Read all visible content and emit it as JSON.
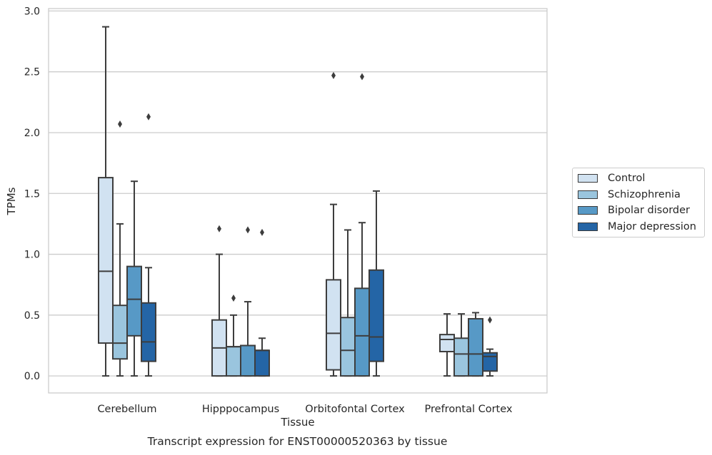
{
  "caption": "Transcript expression for ENST00000520363 by tissue",
  "chart_data": {
    "type": "box",
    "xlabel": "Tissue",
    "ylabel": "TPMs",
    "ylim": [
      -0.14,
      3.02
    ],
    "yticks": [
      "0.0",
      "0.5",
      "1.0",
      "1.5",
      "2.0",
      "2.5",
      "3.0"
    ],
    "grid": "horizontal",
    "legend_position": "right",
    "categories": [
      "Cerebellum",
      "Hipppocampus",
      "Orbitofontal Cortex",
      "Prefrontal Cortex"
    ],
    "series": [
      {
        "name": "Control",
        "color": "#d1e2f1",
        "boxes": [
          {
            "whislo": 0.0,
            "q1": 0.27,
            "med": 0.86,
            "q3": 1.63,
            "whishi": 2.87,
            "fliers": []
          },
          {
            "whislo": 0.0,
            "q1": 0.0,
            "med": 0.23,
            "q3": 0.46,
            "whishi": 1.0,
            "fliers": [
              1.21
            ]
          },
          {
            "whislo": 0.0,
            "q1": 0.05,
            "med": 0.35,
            "q3": 0.79,
            "whishi": 1.41,
            "fliers": [
              2.47
            ]
          },
          {
            "whislo": 0.0,
            "q1": 0.2,
            "med": 0.3,
            "q3": 0.34,
            "whishi": 0.51,
            "fliers": []
          }
        ]
      },
      {
        "name": "Schizophrenia",
        "color": "#9ac5de",
        "boxes": [
          {
            "whislo": 0.0,
            "q1": 0.14,
            "med": 0.27,
            "q3": 0.58,
            "whishi": 1.25,
            "fliers": [
              2.07
            ]
          },
          {
            "whislo": 0.0,
            "q1": 0.0,
            "med": 0.24,
            "q3": 0.24,
            "whishi": 0.5,
            "fliers": [
              0.64
            ]
          },
          {
            "whislo": 0.0,
            "q1": 0.0,
            "med": 0.21,
            "q3": 0.48,
            "whishi": 1.2,
            "fliers": []
          },
          {
            "whislo": 0.0,
            "q1": 0.0,
            "med": 0.18,
            "q3": 0.31,
            "whishi": 0.51,
            "fliers": []
          }
        ]
      },
      {
        "name": "Bipolar disorder",
        "color": "#5799c6",
        "boxes": [
          {
            "whislo": 0.0,
            "q1": 0.33,
            "med": 0.63,
            "q3": 0.9,
            "whishi": 1.6,
            "fliers": []
          },
          {
            "whislo": 0.0,
            "q1": 0.0,
            "med": 0.25,
            "q3": 0.25,
            "whishi": 0.61,
            "fliers": [
              1.2
            ]
          },
          {
            "whislo": 0.0,
            "q1": 0.0,
            "med": 0.33,
            "q3": 0.72,
            "whishi": 1.26,
            "fliers": [
              2.46
            ]
          },
          {
            "whislo": 0.0,
            "q1": 0.0,
            "med": 0.18,
            "q3": 0.47,
            "whishi": 0.52,
            "fliers": []
          }
        ]
      },
      {
        "name": "Major depression",
        "color": "#2465a6",
        "boxes": [
          {
            "whislo": 0.0,
            "q1": 0.12,
            "med": 0.28,
            "q3": 0.6,
            "whishi": 0.89,
            "fliers": [
              2.13
            ]
          },
          {
            "whislo": 0.0,
            "q1": 0.0,
            "med": 0.21,
            "q3": 0.21,
            "whishi": 0.31,
            "fliers": [
              1.18
            ]
          },
          {
            "whislo": 0.0,
            "q1": 0.12,
            "med": 0.32,
            "q3": 0.87,
            "whishi": 1.52,
            "fliers": []
          },
          {
            "whislo": 0.0,
            "q1": 0.04,
            "med": 0.16,
            "q3": 0.19,
            "whishi": 0.22,
            "fliers": [
              0.46
            ]
          }
        ]
      }
    ]
  }
}
